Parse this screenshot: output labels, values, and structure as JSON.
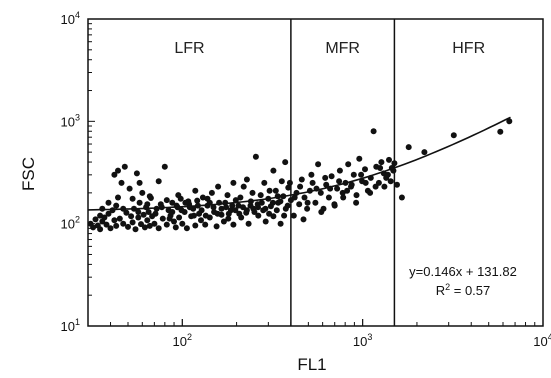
{
  "chart_data": {
    "type": "scatter",
    "title": "",
    "xlabel": "FL1",
    "ylabel": "FSC",
    "xscale": "log",
    "yscale": "log",
    "xlim": [
      30,
      10000
    ],
    "ylim": [
      10,
      10000
    ],
    "grid": false,
    "legend": "none",
    "x_ticks": [
      {
        "value": 100,
        "base": "10",
        "exp": "2"
      },
      {
        "value": 1000,
        "base": "10",
        "exp": "3"
      },
      {
        "value": 10000,
        "base": "10",
        "exp": "4"
      }
    ],
    "y_ticks": [
      {
        "value": 10,
        "base": "10",
        "exp": "1"
      },
      {
        "value": 100,
        "base": "10",
        "exp": "2"
      },
      {
        "value": 1000,
        "base": "10",
        "exp": "3"
      },
      {
        "value": 10000,
        "base": "10",
        "exp": "4"
      }
    ],
    "regions": [
      {
        "label": "LFR",
        "x_start": 30,
        "x_end": 400
      },
      {
        "label": "MFR",
        "x_start": 400,
        "x_end": 1500
      },
      {
        "label": "HFR",
        "x_start": 1500,
        "x_end": 10000
      }
    ],
    "region_boundaries": [
      400,
      1500
    ],
    "fit": {
      "equation": "y=0.146x + 131.82",
      "r2_base": "R",
      "r2_exp": "2",
      "r2_value": " = 0.57",
      "slope": 0.146,
      "intercept": 131.82
    },
    "marker_color": "#111111",
    "points": [
      [
        31,
        100
      ],
      [
        32,
        92
      ],
      [
        33,
        110
      ],
      [
        34,
        96
      ],
      [
        35,
        120
      ],
      [
        35,
        88
      ],
      [
        36,
        105
      ],
      [
        37,
        115
      ],
      [
        38,
        98
      ],
      [
        39,
        125
      ],
      [
        40,
        90
      ],
      [
        41,
        135
      ],
      [
        42,
        108
      ],
      [
        42,
        300
      ],
      [
        43,
        95
      ],
      [
        44,
        330
      ],
      [
        45,
        112
      ],
      [
        46,
        250
      ],
      [
        47,
        100
      ],
      [
        48,
        360
      ],
      [
        49,
        128
      ],
      [
        50,
        93
      ],
      [
        51,
        220
      ],
      [
        52,
        118
      ],
      [
        53,
        103
      ],
      [
        54,
        140
      ],
      [
        55,
        88
      ],
      [
        56,
        310
      ],
      [
        57,
        115
      ],
      [
        58,
        160
      ],
      [
        59,
        99
      ],
      [
        60,
        200
      ],
      [
        61,
        122
      ],
      [
        62,
        92
      ],
      [
        63,
        145
      ],
      [
        64,
        108
      ],
      [
        65,
        130
      ],
      [
        66,
        95
      ],
      [
        67,
        178
      ],
      [
        68,
        118
      ],
      [
        70,
        100
      ],
      [
        72,
        140
      ],
      [
        74,
        90
      ],
      [
        76,
        155
      ],
      [
        78,
        112
      ],
      [
        80,
        360
      ],
      [
        82,
        98
      ],
      [
        84,
        135
      ],
      [
        86,
        120
      ],
      [
        88,
        160
      ],
      [
        90,
        105
      ],
      [
        92,
        92
      ],
      [
        94,
        145
      ],
      [
        96,
        115
      ],
      [
        98,
        175
      ],
      [
        100,
        100
      ],
      [
        103,
        130
      ],
      [
        106,
        90
      ],
      [
        109,
        155
      ],
      [
        112,
        118
      ],
      [
        115,
        140
      ],
      [
        118,
        96
      ],
      [
        121,
        168
      ],
      [
        124,
        125
      ],
      [
        127,
        108
      ],
      [
        130,
        180
      ],
      [
        134,
        98
      ],
      [
        138,
        150
      ],
      [
        142,
        115
      ],
      [
        146,
        200
      ],
      [
        150,
        130
      ],
      [
        155,
        94
      ],
      [
        160,
        160
      ],
      [
        165,
        122
      ],
      [
        170,
        105
      ],
      [
        175,
        145
      ],
      [
        180,
        112
      ],
      [
        186,
        135
      ],
      [
        192,
        98
      ],
      [
        198,
        170
      ],
      [
        205,
        150
      ],
      [
        212,
        115
      ],
      [
        219,
        230
      ],
      [
        226,
        128
      ],
      [
        233,
        100
      ],
      [
        240,
        165
      ],
      [
        248,
        140
      ],
      [
        256,
        450
      ],
      [
        264,
        120
      ],
      [
        272,
        190
      ],
      [
        281,
        135
      ],
      [
        290,
        105
      ],
      [
        300,
        175
      ],
      [
        310,
        148
      ],
      [
        320,
        118
      ],
      [
        330,
        210
      ],
      [
        340,
        160
      ],
      [
        351,
        100
      ],
      [
        363,
        185
      ],
      [
        375,
        140
      ],
      [
        387,
        225
      ],
      [
        400,
        170
      ],
      [
        415,
        120
      ],
      [
        430,
        200
      ],
      [
        445,
        155
      ],
      [
        460,
        270
      ],
      [
        476,
        180
      ],
      [
        492,
        140
      ],
      [
        510,
        210
      ],
      [
        528,
        250
      ],
      [
        547,
        160
      ],
      [
        566,
        380
      ],
      [
        586,
        200
      ],
      [
        607,
        140
      ],
      [
        628,
        240
      ],
      [
        650,
        180
      ],
      [
        673,
        290
      ],
      [
        697,
        155
      ],
      [
        722,
        220
      ],
      [
        748,
        330
      ],
      [
        775,
        200
      ],
      [
        803,
        250
      ],
      [
        832,
        380
      ],
      [
        862,
        230
      ],
      [
        893,
        300
      ],
      [
        925,
        190
      ],
      [
        958,
        430
      ],
      [
        993,
        260
      ],
      [
        1030,
        340
      ],
      [
        1070,
        210
      ],
      [
        1110,
        280
      ],
      [
        1150,
        800
      ],
      [
        1190,
        360
      ],
      [
        1230,
        250
      ],
      [
        1270,
        400
      ],
      [
        1310,
        310
      ],
      [
        1350,
        280
      ],
      [
        1400,
        420
      ],
      [
        1450,
        350
      ],
      [
        1500,
        390
      ],
      [
        1550,
        240
      ],
      [
        1650,
        180
      ],
      [
        1800,
        560
      ],
      [
        2200,
        500
      ],
      [
        3200,
        730
      ],
      [
        5800,
        790
      ],
      [
        6500,
        1000
      ],
      [
        28,
        95
      ],
      [
        44,
        180
      ],
      [
        58,
        250
      ],
      [
        66,
        185
      ],
      [
        74,
        260
      ],
      [
        85,
        112
      ],
      [
        95,
        190
      ],
      [
        108,
        165
      ],
      [
        118,
        210
      ],
      [
        138,
        175
      ],
      [
        158,
        230
      ],
      [
        178,
        190
      ],
      [
        192,
        250
      ],
      [
        210,
        180
      ],
      [
        228,
        270
      ],
      [
        245,
        200
      ],
      [
        262,
        155
      ],
      [
        285,
        250
      ],
      [
        305,
        210
      ],
      [
        320,
        330
      ],
      [
        338,
        185
      ],
      [
        356,
        260
      ],
      [
        372,
        400
      ],
      [
        395,
        250
      ],
      [
        420,
        180
      ],
      [
        450,
        230
      ],
      [
        470,
        110
      ],
      [
        495,
        160
      ],
      [
        520,
        300
      ],
      [
        555,
        220
      ],
      [
        590,
        130
      ],
      [
        620,
        280
      ],
      [
        660,
        220
      ],
      [
        700,
        150
      ],
      [
        740,
        260
      ],
      [
        780,
        180
      ],
      [
        820,
        210
      ],
      [
        870,
        240
      ],
      [
        920,
        160
      ],
      [
        980,
        300
      ],
      [
        1040,
        250
      ],
      [
        1100,
        200
      ],
      [
        1180,
        230
      ],
      [
        1250,
        350
      ],
      [
        1320,
        230
      ],
      [
        1380,
        300
      ],
      [
        1430,
        260
      ],
      [
        1480,
        330
      ],
      [
        36,
        140
      ],
      [
        39,
        160
      ],
      [
        43,
        150
      ],
      [
        47,
        140
      ],
      [
        53,
        175
      ],
      [
        57,
        130
      ],
      [
        64,
        155
      ],
      [
        71,
        125
      ],
      [
        77,
        145
      ],
      [
        82,
        170
      ],
      [
        88,
        130
      ],
      [
        93,
        150
      ],
      [
        99,
        135
      ],
      [
        104,
        160
      ],
      [
        110,
        145
      ],
      [
        116,
        120
      ],
      [
        122,
        150
      ],
      [
        128,
        135
      ],
      [
        135,
        120
      ],
      [
        142,
        160
      ],
      [
        149,
        145
      ],
      [
        157,
        125
      ],
      [
        165,
        140
      ],
      [
        173,
        160
      ],
      [
        181,
        125
      ],
      [
        189,
        150
      ],
      [
        197,
        135
      ],
      [
        207,
        125
      ],
      [
        217,
        145
      ],
      [
        228,
        135
      ],
      [
        239,
        150
      ],
      [
        251,
        130
      ],
      [
        263,
        145
      ],
      [
        276,
        160
      ],
      [
        289,
        140
      ],
      [
        303,
        125
      ],
      [
        318,
        160
      ],
      [
        334,
        135
      ],
      [
        350,
        165
      ],
      [
        367,
        120
      ],
      [
        384,
        150
      ]
    ]
  }
}
